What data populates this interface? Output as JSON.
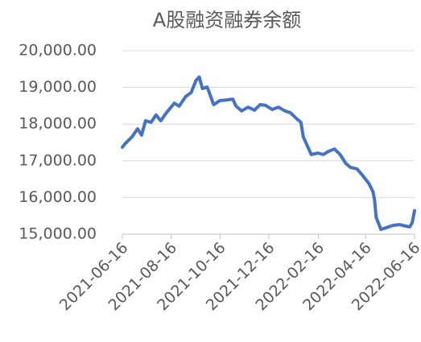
{
  "chart_data": {
    "type": "line",
    "title": "A股融资融券余额",
    "x": [
      "2021-06-16",
      "2021-06-20",
      "2021-06-28",
      "2021-07-05",
      "2021-07-10",
      "2021-07-15",
      "2021-07-22",
      "2021-07-28",
      "2021-08-03",
      "2021-08-10",
      "2021-08-20",
      "2021-08-26",
      "2021-09-03",
      "2021-09-10",
      "2021-09-16",
      "2021-09-20",
      "2021-09-24",
      "2021-09-30",
      "2021-10-08",
      "2021-10-16",
      "2021-10-25",
      "2021-11-01",
      "2021-11-05",
      "2021-11-12",
      "2021-11-20",
      "2021-11-28",
      "2021-12-05",
      "2021-12-12",
      "2021-12-20",
      "2021-12-28",
      "2022-01-05",
      "2022-01-12",
      "2022-01-20",
      "2022-01-25",
      "2022-01-28",
      "2022-02-07",
      "2022-02-15",
      "2022-02-22",
      "2022-03-01",
      "2022-03-08",
      "2022-03-15",
      "2022-03-22",
      "2022-03-28",
      "2022-04-05",
      "2022-04-12",
      "2022-04-20",
      "2022-04-25",
      "2022-04-27",
      "2022-04-29",
      "2022-05-05",
      "2022-05-12",
      "2022-05-20",
      "2022-05-28",
      "2022-06-05",
      "2022-06-10",
      "2022-06-13",
      "2022-06-16"
    ],
    "series": [
      {
        "name": "A股融资融券余额",
        "color": "#4472c4",
        "values": [
          17370,
          17480,
          17650,
          17870,
          17700,
          18090,
          18050,
          18250,
          18090,
          18310,
          18570,
          18490,
          18750,
          18860,
          19190,
          19280,
          18970,
          19010,
          18530,
          18640,
          18660,
          18680,
          18490,
          18360,
          18460,
          18380,
          18530,
          18510,
          18400,
          18460,
          18360,
          18310,
          18140,
          18050,
          17650,
          17170,
          17210,
          17170,
          17260,
          17320,
          17170,
          16930,
          16820,
          16780,
          16600,
          16380,
          16160,
          15940,
          15460,
          15130,
          15180,
          15240,
          15260,
          15220,
          15200,
          15310,
          15640
        ]
      }
    ],
    "xlim": [
      "2021-06-16",
      "2022-06-16"
    ],
    "xticks": [
      "2021-06-16",
      "2021-08-16",
      "2021-10-16",
      "2021-12-16",
      "2022-02-16",
      "2022-04-16",
      "2022-06-16"
    ],
    "ylim": [
      15000,
      20000
    ],
    "yticks": [
      {
        "value": 15000,
        "label": "15,000.00"
      },
      {
        "value": 16000,
        "label": "16,000.00"
      },
      {
        "value": 17000,
        "label": "17,000.00"
      },
      {
        "value": 18000,
        "label": "18,000.00"
      },
      {
        "value": 19000,
        "label": "19,000.00"
      },
      {
        "value": 20000,
        "label": "20,000.00"
      }
    ],
    "grid": true
  }
}
